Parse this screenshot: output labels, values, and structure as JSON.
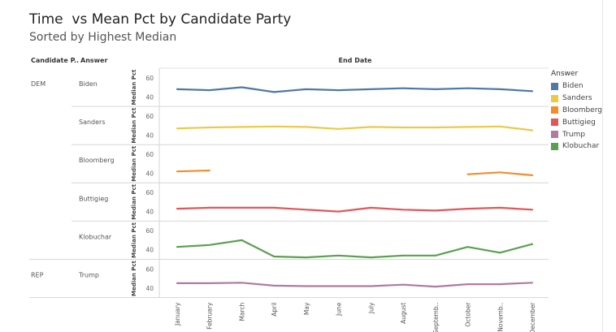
{
  "header": {
    "title": "Time  vs Mean Pct by Candidate Party",
    "subtitle": "Sorted by Highest Median"
  },
  "columns": {
    "party": "Candidate P..",
    "answer": "Answer",
    "x_title": "End Date"
  },
  "legend": {
    "title": "Answer",
    "items": [
      {
        "label": "Biden",
        "color": "#4e79a7"
      },
      {
        "label": "Sanders",
        "color": "#edc948"
      },
      {
        "label": "Bloomberg",
        "color": "#f28e2b"
      },
      {
        "label": "Buttigieg",
        "color": "#e15759"
      },
      {
        "label": "Trump",
        "color": "#b07aa1"
      },
      {
        "label": "Klobuchar",
        "color": "#59a14f"
      }
    ]
  },
  "chart_data": {
    "type": "line",
    "title": "Time  vs Mean Pct by Candidate Party",
    "subtitle": "Sorted by Highest Median",
    "xlabel": "End Date",
    "ylabel": "Median Pct",
    "ylim": [
      30,
      70
    ],
    "yticks": [
      40,
      60
    ],
    "x": [
      "January",
      "February",
      "March",
      "April",
      "May",
      "June",
      "July",
      "August",
      "Septemb..",
      "October",
      "Novemb..",
      "December"
    ],
    "panels": [
      {
        "party": "DEM",
        "answer": "Biden",
        "color": "#4e79a7",
        "values": [
          48,
          47,
          50,
          45,
          48,
          47,
          48,
          49,
          48,
          49,
          48,
          46
        ]
      },
      {
        "party": "",
        "answer": "Sanders",
        "color": "#edc948",
        "values": [
          47,
          48,
          48.5,
          49,
          48.5,
          46.5,
          48.5,
          48,
          48,
          48.5,
          49,
          45
        ]
      },
      {
        "party": "",
        "answer": "Bloomberg",
        "color": "#f28e2b",
        "values": [
          42,
          43,
          null,
          null,
          null,
          null,
          null,
          null,
          null,
          39,
          41,
          38
        ]
      },
      {
        "party": "",
        "answer": "Buttigieg",
        "color": "#e15759",
        "values": [
          43,
          44,
          44,
          44,
          42,
          40,
          44,
          42,
          41,
          43,
          44,
          42
        ]
      },
      {
        "party": "",
        "answer": "Klobuchar",
        "color": "#59a14f",
        "values": [
          43,
          45,
          50,
          33,
          32,
          34,
          32,
          34,
          34,
          43,
          37,
          46
        ]
      },
      {
        "party": "REP",
        "answer": "Trump",
        "color": "#b07aa1",
        "values": [
          45,
          45,
          45.5,
          42.5,
          42,
          42,
          42,
          43.5,
          41.5,
          44,
          44,
          45.5
        ]
      }
    ]
  }
}
